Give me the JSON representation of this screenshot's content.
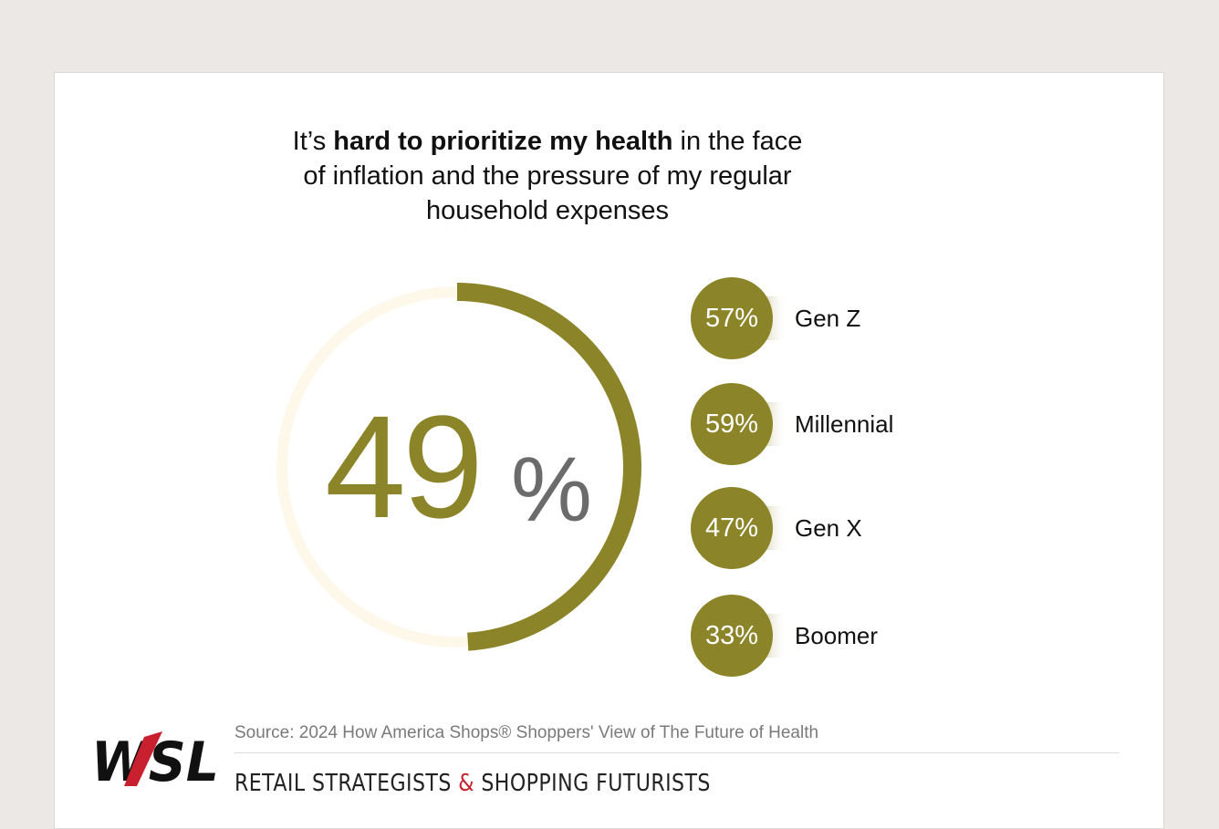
{
  "title": {
    "prefix": "It’s ",
    "bold": "hard to prioritize my health",
    "suffix": " in the face of inflation and the pressure of my regular household expenses"
  },
  "chart_data": [
    {
      "type": "pie",
      "style": "donut",
      "value": 49,
      "max": 100,
      "display_value": "49",
      "display_unit": "%",
      "colors": {
        "fill": "#8c8428",
        "track": "#fdf8ea"
      }
    },
    {
      "type": "table",
      "categories": [
        "Gen Z",
        "Millennial",
        "Gen X",
        "Boomer"
      ],
      "values": [
        57,
        59,
        47,
        33
      ],
      "labels": [
        "57%",
        "59%",
        "47%",
        "33%"
      ],
      "colors": {
        "badge": "#8c8428"
      }
    }
  ],
  "footer": {
    "source": "Source: 2024 How America Shops® Shoppers' View of The Future of Health",
    "logo_text": "WSL",
    "tagline_left": "RETAIL STRATEGISTS ",
    "tagline_amp": "&",
    "tagline_right": " SHOPPING FUTURISTS"
  }
}
